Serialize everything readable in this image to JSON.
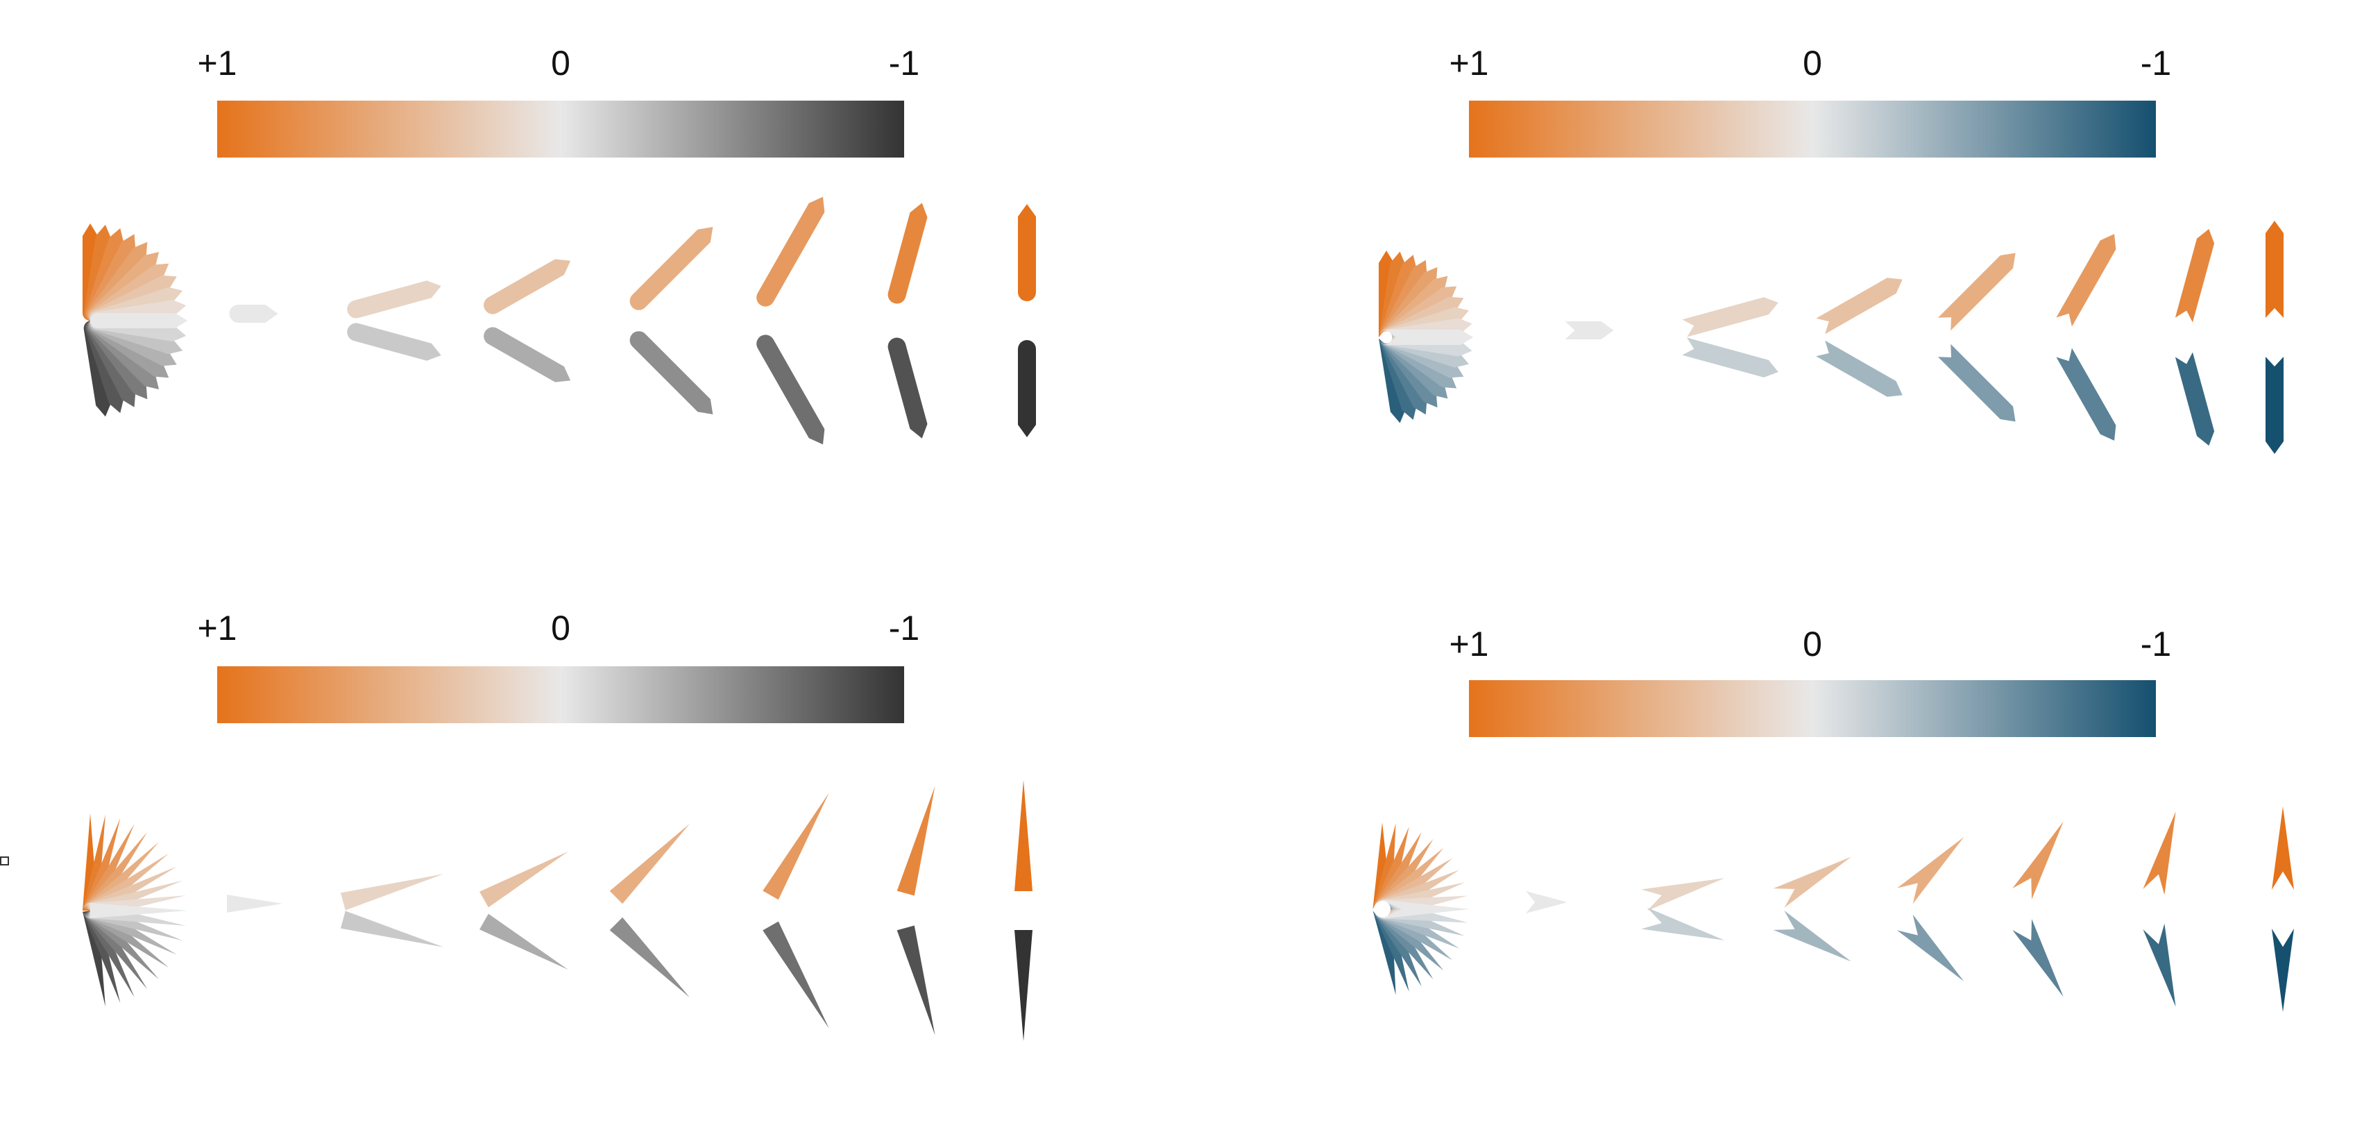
{
  "panels": [
    {
      "name": "orange-gray-rounded",
      "colorbar": {
        "labels": [
          "+1",
          "0",
          "-1"
        ],
        "colors": [
          "#e5731b",
          "#e8e8e8",
          "#333333"
        ]
      },
      "glyph_style": "rounded",
      "upper_color": "#e5731b",
      "lower_color": "#333333"
    },
    {
      "name": "orange-blue-notched",
      "colorbar": {
        "labels": [
          "+1",
          "0",
          "-1"
        ],
        "colors": [
          "#e5731b",
          "#e8e8e8",
          "#15506f"
        ]
      },
      "glyph_style": "notched",
      "upper_color": "#e5731b",
      "lower_color": "#15506f"
    },
    {
      "name": "orange-gray-tapered",
      "colorbar": {
        "labels": [
          "+1",
          "0",
          "-1"
        ],
        "colors": [
          "#e5731b",
          "#e8e8e8",
          "#333333"
        ]
      },
      "glyph_style": "tapered",
      "upper_color": "#e5731b",
      "lower_color": "#333333"
    },
    {
      "name": "orange-blue-arrowhead",
      "colorbar": {
        "labels": [
          "+1",
          "0",
          "-1"
        ],
        "colors": [
          "#e5731b",
          "#e8e8e8",
          "#15506f"
        ]
      },
      "glyph_style": "arrowhead",
      "upper_color": "#e5731b",
      "lower_color": "#15506f"
    }
  ],
  "series": {
    "correlation_levels": [
      0,
      0.17,
      0.33,
      0.5,
      0.67,
      0.83,
      1
    ]
  }
}
